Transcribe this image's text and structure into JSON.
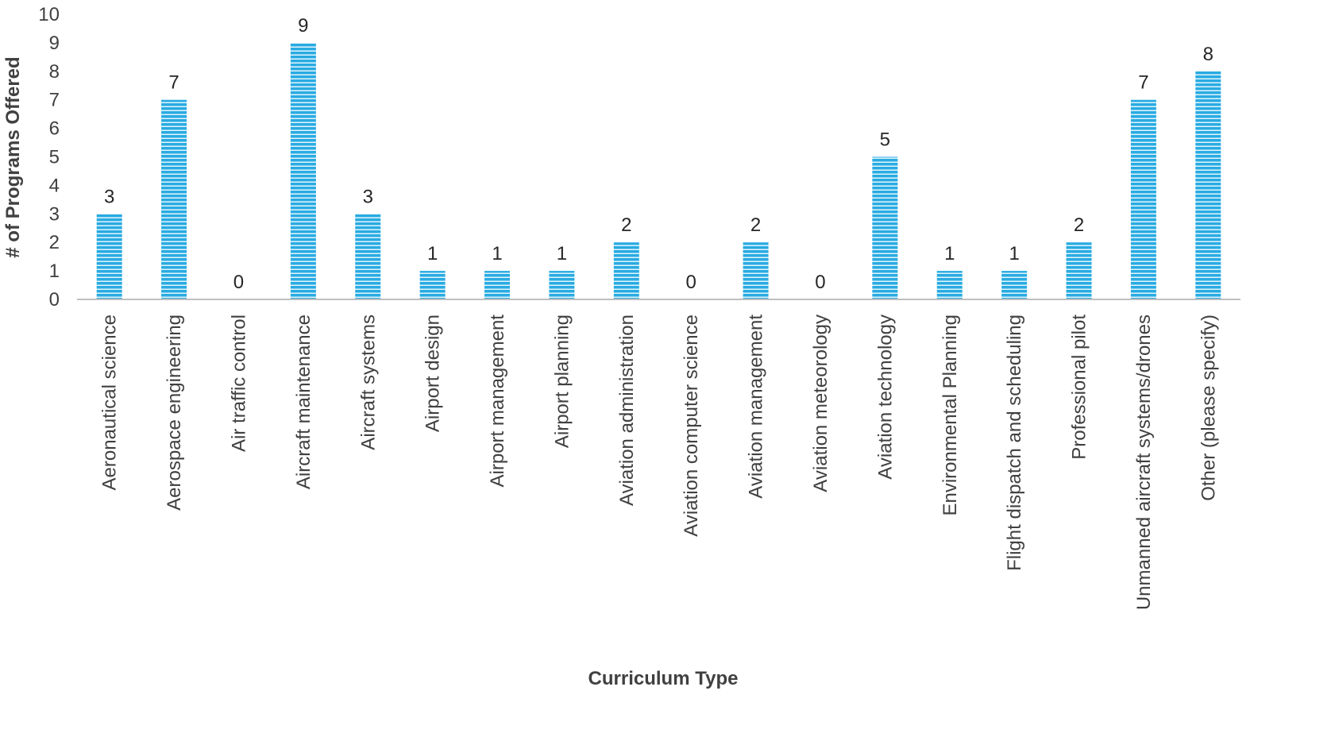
{
  "chart_data": {
    "type": "bar",
    "title": "",
    "xlabel": "Curriculum Type",
    "ylabel": "# of Programs Offered",
    "ylim": [
      0,
      10
    ],
    "yticks": [
      0,
      1,
      2,
      3,
      4,
      5,
      6,
      7,
      8,
      9,
      10
    ],
    "grid": false,
    "legend": "none",
    "bar_color": "#29ABE2",
    "bar_stripe_color": "#E3F5FC",
    "categories": [
      "Aeronautical science",
      "Aerospace engineering",
      "Air traffic control",
      "Aircraft maintenance",
      "Aircraft systems",
      "Airport design",
      "Airport management",
      "Airport planning",
      "Aviation administration",
      "Aviation computer science",
      "Aviation management",
      "Aviation meteorology",
      "Aviation technology",
      "Environmental Planning",
      "Flight dispatch and scheduling",
      "Professional pilot",
      "Unmanned aircraft systems/drones",
      "Other (please specify)"
    ],
    "values": [
      3,
      7,
      0,
      9,
      3,
      1,
      1,
      1,
      2,
      0,
      2,
      0,
      5,
      1,
      1,
      2,
      7,
      8
    ]
  }
}
